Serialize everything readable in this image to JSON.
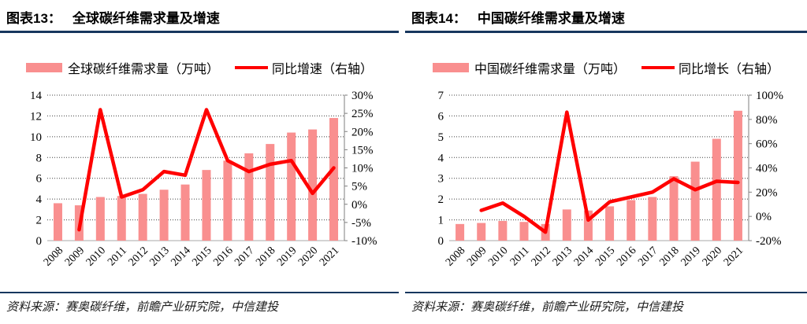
{
  "colors": {
    "bar": "#F98F8F",
    "line": "#FF0000",
    "rule": "#17375E",
    "grid": "#404040",
    "baseline": "#C6C6C6",
    "axis_line": "#7F7F7F",
    "axis_text": "#000000"
  },
  "figures": [
    {
      "tag": "图表13：",
      "title": "全球碳纤维需求量及增速",
      "legend": {
        "bar": "全球碳纤维需求量（万吨）",
        "line": "同比增速（右轴）"
      },
      "source": "资料来源：赛奥碳纤维，前瞻产业研究院，中信建投",
      "chart_data": {
        "type": "bar",
        "subtype": "combo-bar-line-dual-axis",
        "title": "全球碳纤维需求量及增速",
        "categories": [
          "2008",
          "2009",
          "2010",
          "2011",
          "2012",
          "2013",
          "2014",
          "2015",
          "2016",
          "2017",
          "2018",
          "2019",
          "2020",
          "2021"
        ],
        "series": [
          {
            "name": "全球碳纤维需求量（万吨）",
            "type": "bar",
            "axis": "left",
            "values": [
              3.6,
              3.4,
              4.2,
              4.3,
              4.5,
              4.9,
              5.4,
              6.8,
              7.7,
              8.4,
              9.3,
              10.4,
              10.7,
              11.8
            ]
          },
          {
            "name": "同比增速（右轴）",
            "type": "line",
            "axis": "right",
            "unit": "%",
            "values": [
              null,
              -7,
              26,
              2,
              4,
              9,
              8,
              26,
              12,
              9,
              11,
              12,
              3,
              10
            ]
          }
        ],
        "left_axis": {
          "min": 0,
          "max": 14,
          "step": 2,
          "ticks": [
            "0",
            "2",
            "4",
            "6",
            "8",
            "10",
            "12",
            "14"
          ]
        },
        "right_axis": {
          "min": -10,
          "max": 30,
          "step": 5,
          "ticks": [
            "-10%",
            "-5%",
            "0%",
            "5%",
            "10%",
            "15%",
            "20%",
            "25%",
            "30%"
          ]
        },
        "grid": true,
        "legend_position": "top"
      }
    },
    {
      "tag": "图表14：",
      "title": "中国碳纤维需求量及增速",
      "legend": {
        "bar": "中国碳纤维需求量（万吨）",
        "line": "同比增长（右轴）"
      },
      "source": "资料来源：赛奥碳纤维，前瞻产业研究院，中信建投",
      "chart_data": {
        "type": "bar",
        "subtype": "combo-bar-line-dual-axis",
        "title": "中国碳纤维需求量及增速",
        "categories": [
          "2008",
          "2009",
          "2010",
          "2011",
          "2012",
          "2013",
          "2014",
          "2015",
          "2016",
          "2017",
          "2018",
          "2019",
          "2020",
          "2021"
        ],
        "series": [
          {
            "name": "中国碳纤维需求量（万吨）",
            "type": "bar",
            "axis": "left",
            "values": [
              0.8,
              0.85,
              0.95,
              0.9,
              0.8,
              1.5,
              1.45,
              1.65,
              1.95,
              2.1,
              3.1,
              3.8,
              4.9,
              6.25
            ]
          },
          {
            "name": "同比增长（右轴）",
            "type": "line",
            "axis": "right",
            "unit": "%",
            "values": [
              null,
              5,
              11,
              0,
              -13,
              86,
              -3,
              12,
              16,
              20,
              31,
              22,
              29,
              28
            ]
          }
        ],
        "left_axis": {
          "min": 0,
          "max": 7,
          "step": 1,
          "ticks": [
            "0",
            "1",
            "2",
            "3",
            "4",
            "5",
            "6",
            "7"
          ]
        },
        "right_axis": {
          "min": -20,
          "max": 100,
          "step": 20,
          "ticks": [
            "-20%",
            "0%",
            "20%",
            "40%",
            "60%",
            "80%",
            "100%"
          ]
        },
        "grid": true,
        "legend_position": "top"
      }
    }
  ]
}
